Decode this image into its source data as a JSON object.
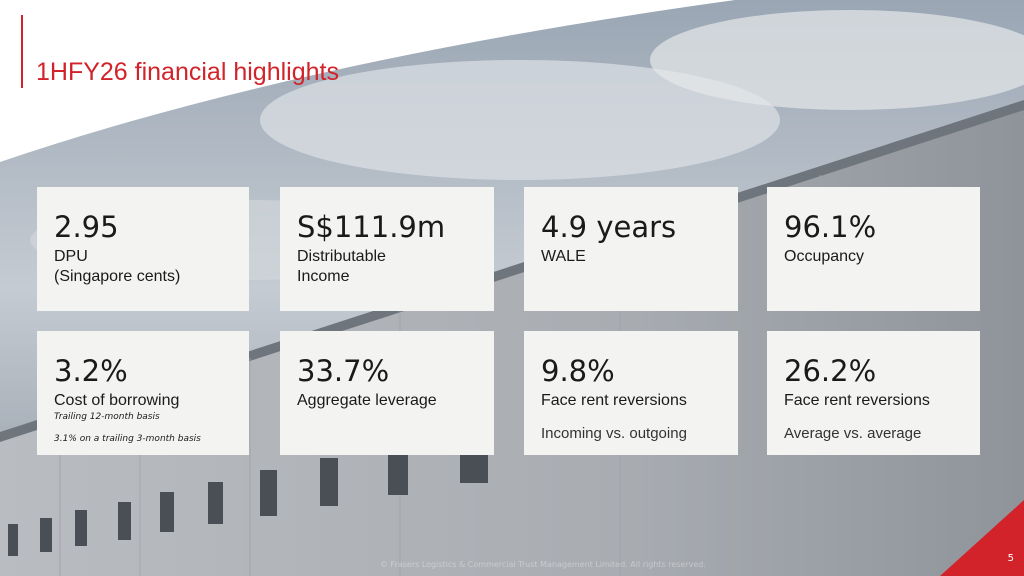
{
  "title": "1HFY26 financial highlights",
  "cards": [
    {
      "value": "2.95",
      "label": [
        "DPU",
        "(Singapore cents)"
      ]
    },
    {
      "value": "S$111.9m",
      "label": [
        "Distributable",
        "Income"
      ]
    },
    {
      "value": "4.9 years",
      "label": [
        "WALE"
      ]
    },
    {
      "value": "96.1%",
      "label": [
        "Occupancy"
      ]
    },
    {
      "value": "3.2%",
      "label": [
        "Cost of borrowing"
      ],
      "notes": [
        "Trailing 12-month basis",
        "3.1% on a trailing 3-month basis"
      ]
    },
    {
      "value": "33.7%",
      "label": [
        "Aggregate leverage"
      ]
    },
    {
      "value": "9.8%",
      "label": [
        "Face rent reversions"
      ],
      "sub": "Incoming vs. outgoing"
    },
    {
      "value": "26.2%",
      "label": [
        "Face rent reversions"
      ],
      "sub": "Average vs. average"
    }
  ],
  "footer": {
    "copyright": "© Frasers Logistics & Commercial Trust Management Limited. All rights reserved.",
    "page": "5"
  }
}
